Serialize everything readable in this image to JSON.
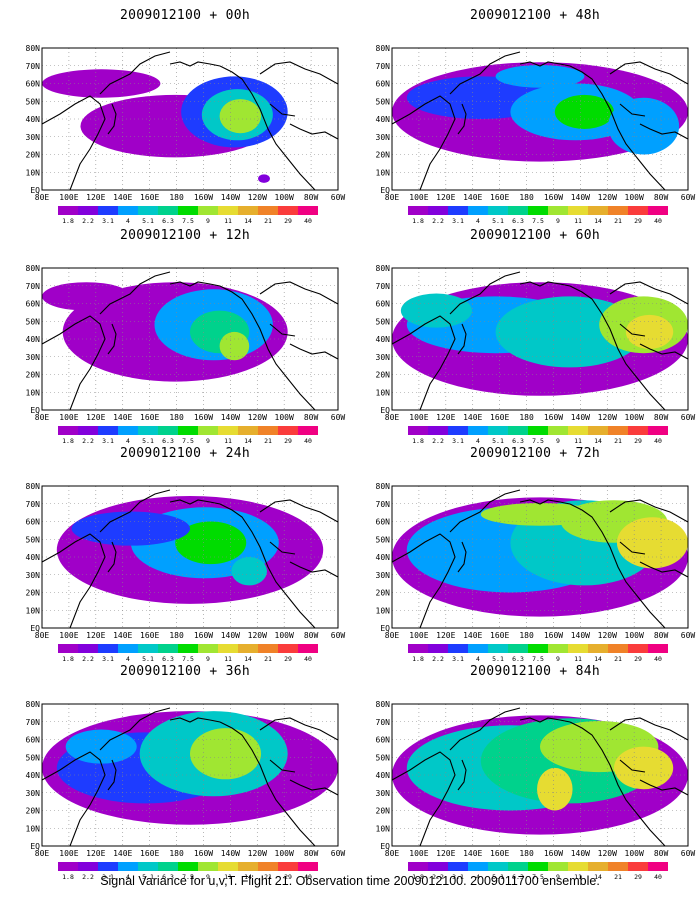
{
  "panels": [
    {
      "title": "2009012100 + 00h"
    },
    {
      "title": "2009012100 + 48h"
    },
    {
      "title": "2009012100 + 12h"
    },
    {
      "title": "2009012100 + 60h"
    },
    {
      "title": "2009012100 + 24h"
    },
    {
      "title": "2009012100 + 72h"
    },
    {
      "title": "2009012100 + 36h"
    },
    {
      "title": "2009012100 + 84h"
    }
  ],
  "lat_labels": [
    "80N",
    "70N",
    "60N",
    "50N",
    "40N",
    "30N",
    "20N",
    "10N",
    "EQ"
  ],
  "lon_labels": [
    "80E",
    "100E",
    "120E",
    "140E",
    "160E",
    "180",
    "160W",
    "140W",
    "120W",
    "100W",
    "80W",
    "60W"
  ],
  "colorbar": {
    "labels": [
      "1.8",
      "2.2",
      "3.1",
      "4",
      "5.1",
      "6.3",
      "7.5",
      "9",
      "11",
      "14",
      "21",
      "29",
      "40"
    ],
    "colors": [
      "#a000c8",
      "#8200dc",
      "#1e3cff",
      "#00a0ff",
      "#00c8c8",
      "#00d28c",
      "#00dc00",
      "#a0e632",
      "#e6dc32",
      "#e6af2d",
      "#f08228",
      "#fa3c3c",
      "#f00082"
    ]
  },
  "footer": "Signal Variance for u,v,T. Flight 21. Observation time 2009012100. 2009011700 ensemble."
}
